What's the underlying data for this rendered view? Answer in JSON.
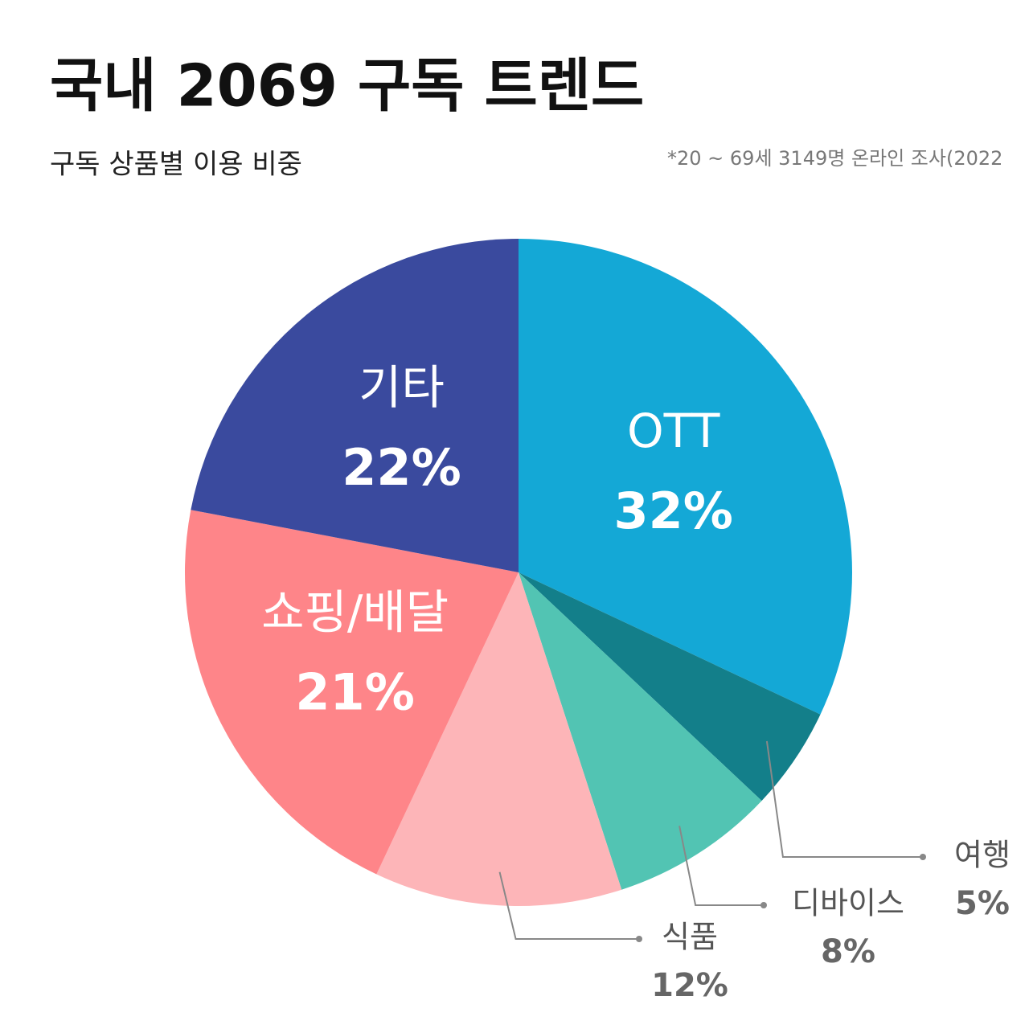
{
  "chart_data": {
    "type": "pie",
    "title": "국내 2069 구독 트렌드",
    "subtitle": "구독 상품별 이용 비중",
    "note": "*20 ~ 69세 3149명 온라인 조사(2022",
    "categories": [
      "OTT",
      "여행",
      "디바이스",
      "식품",
      "쇼핑/배달",
      "기타"
    ],
    "values": [
      32,
      5,
      8,
      12,
      21,
      22
    ],
    "value_labels": [
      "32%",
      "5%",
      "8%",
      "12%",
      "21%",
      "22%"
    ],
    "colors": [
      "#14a8d6",
      "#137f8a",
      "#52c4b3",
      "#fdb5b8",
      "#fe8589",
      "#3a4a9e"
    ]
  }
}
